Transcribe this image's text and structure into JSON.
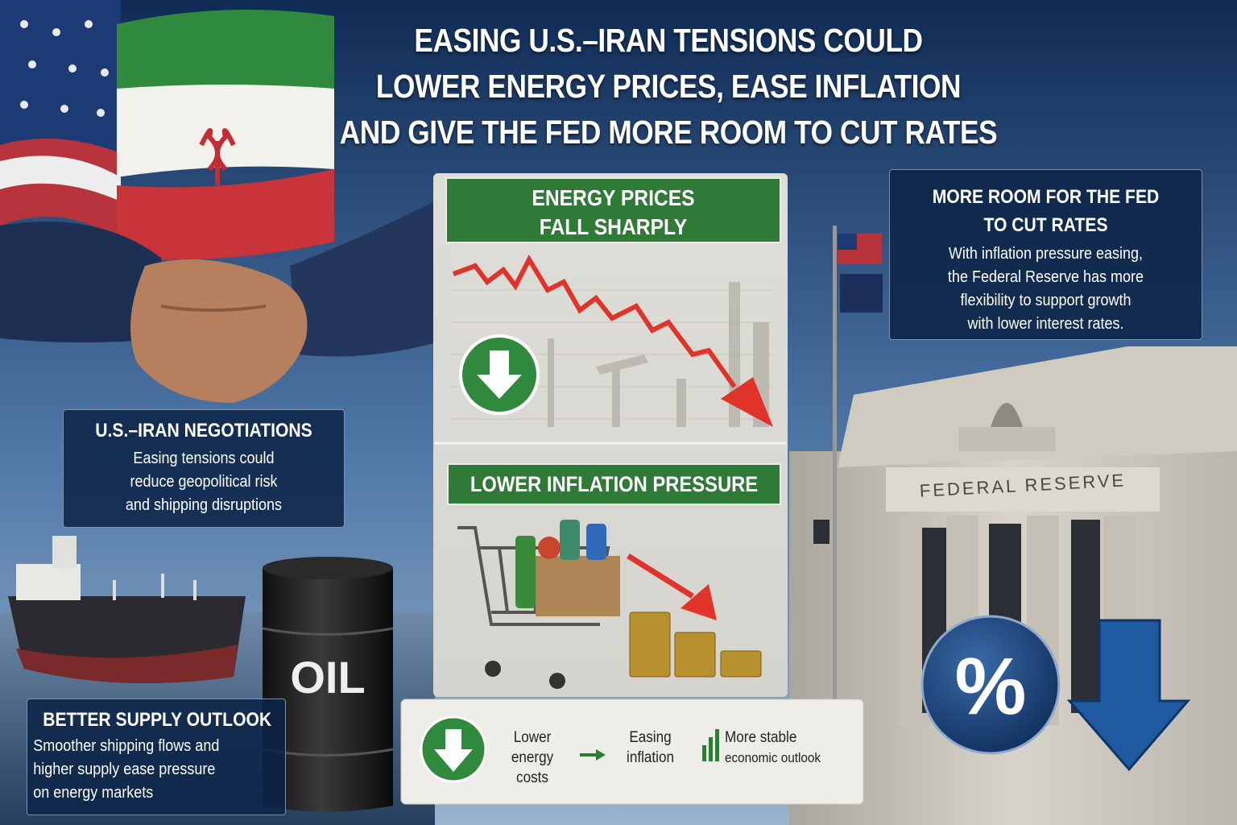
{
  "header": {
    "title_lines": [
      "EASING U.S.–IRAN TENSIONS COULD",
      "LOWER ENERGY PRICES, EASE INFLATION",
      "AND GIVE THE FED MORE ROOM TO CUT RATES"
    ]
  },
  "negotiations": {
    "title": "U.S.–IRAN NEGOTIATIONS",
    "body_lines": [
      "Easing tensions could",
      "reduce geopolitical risk",
      "and shipping disruptions"
    ]
  },
  "supply": {
    "title": "BETTER SUPPLY OUTLOOK",
    "body_lines": [
      "Smoother shipping flows and",
      "higher supply ease pressure",
      "on energy markets"
    ]
  },
  "barrel_label": "OIL",
  "energy": {
    "title_lines": [
      "ENERGY PRICES",
      "FALL SHARPLY"
    ]
  },
  "inflation": {
    "title": "LOWER INFLATION PRESSURE"
  },
  "summary": {
    "items": [
      {
        "lines": [
          "Lower",
          "energy",
          "costs"
        ]
      },
      {
        "lines": [
          "Easing",
          "inflation"
        ]
      },
      {
        "lines": [
          "More stable",
          "economic outlook"
        ]
      }
    ]
  },
  "fed": {
    "title_lines": [
      "MORE ROOM FOR THE FED",
      "TO CUT RATES"
    ],
    "body_lines": [
      "With inflation pressure easing,",
      "the Federal Reserve has more",
      "flexibility to support growth",
      "with lower interest rates."
    ]
  },
  "building_sign": "FEDERAL RESERVE",
  "rate_icon": "%"
}
